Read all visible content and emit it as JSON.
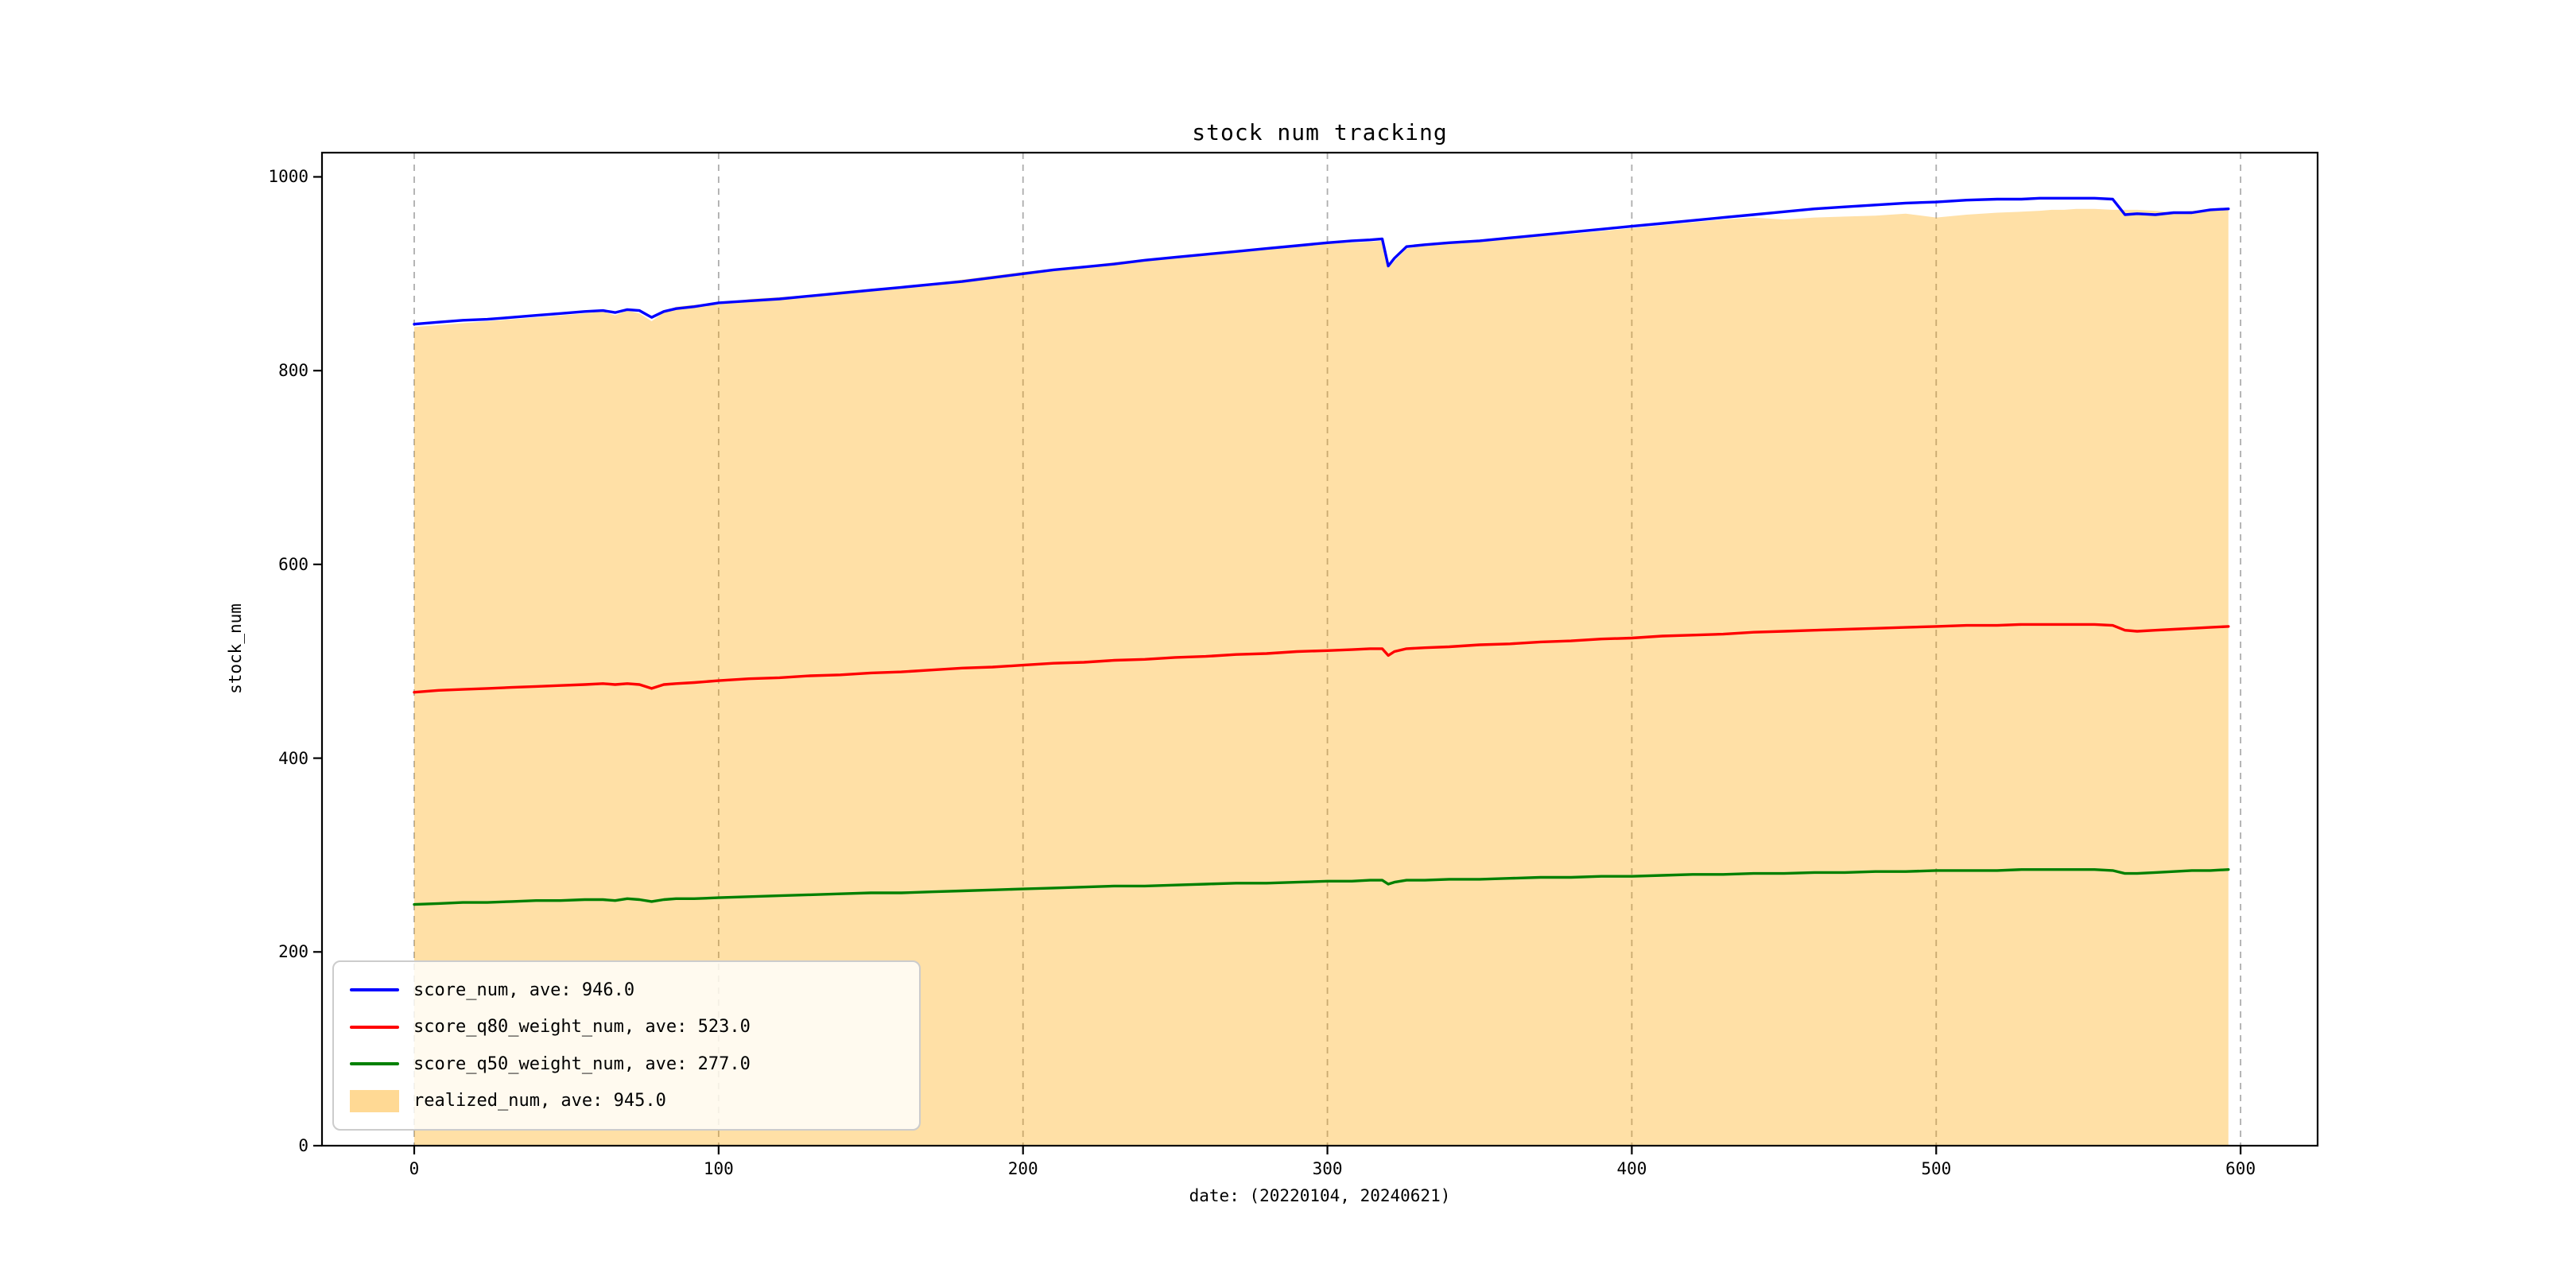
{
  "chart_data": {
    "type": "line",
    "title": "stock num tracking",
    "xlabel": "date: (20220104, 20240621)",
    "ylabel": "stock_num",
    "xlim": [
      -30.3,
      625.3
    ],
    "ylim": [
      0,
      1025
    ],
    "x_ticks": [
      0,
      100,
      200,
      300,
      400,
      500,
      600
    ],
    "y_ticks": [
      0,
      200,
      400,
      600,
      800,
      1000
    ],
    "grid": "vertical-dashed",
    "legend_position": "lower-left",
    "colors": {
      "score_num": "#0000ff",
      "score_q80_weight_num": "#ff0000",
      "score_q50_weight_num": "#008000",
      "realized_num": "#ffa500",
      "grid": "#adadad",
      "spine": "#000000"
    },
    "x": [
      0,
      8,
      16,
      24,
      32,
      40,
      48,
      56,
      62,
      66,
      70,
      74,
      78,
      82,
      86,
      92,
      100,
      110,
      120,
      130,
      140,
      150,
      160,
      170,
      180,
      190,
      200,
      210,
      220,
      230,
      240,
      250,
      260,
      270,
      280,
      290,
      300,
      308,
      314,
      318,
      320,
      322,
      326,
      332,
      340,
      350,
      360,
      370,
      380,
      390,
      400,
      410,
      420,
      430,
      440,
      450,
      460,
      470,
      480,
      490,
      500,
      510,
      520,
      528,
      534,
      538,
      542,
      546,
      552,
      558,
      562,
      566,
      572,
      578,
      584,
      590,
      596
    ],
    "series": [
      {
        "name": "score_num",
        "label": "score_num, ave: 946.0",
        "color": "#0000ff",
        "type": "line",
        "values": [
          848,
          850,
          852,
          853,
          855,
          857,
          859,
          861,
          862,
          860,
          863,
          862,
          855,
          861,
          864,
          866,
          870,
          872,
          874,
          877,
          880,
          883,
          886,
          889,
          892,
          896,
          900,
          904,
          907,
          910,
          914,
          917,
          920,
          923,
          926,
          929,
          932,
          934,
          935,
          936,
          908,
          916,
          928,
          930,
          932,
          934,
          937,
          940,
          943,
          946,
          949,
          952,
          955,
          958,
          961,
          964,
          967,
          969,
          971,
          973,
          974,
          976,
          977,
          977,
          978,
          978,
          978,
          978,
          978,
          977,
          961,
          962,
          961,
          963,
          963,
          966,
          967
        ]
      },
      {
        "name": "score_q80_weight_num",
        "label": "score_q80_weight_num, ave: 523.0",
        "color": "#ff0000",
        "type": "line",
        "values": [
          468,
          470,
          471,
          472,
          473,
          474,
          475,
          476,
          477,
          476,
          477,
          476,
          472,
          476,
          477,
          478,
          480,
          482,
          483,
          485,
          486,
          488,
          489,
          491,
          493,
          494,
          496,
          498,
          499,
          501,
          502,
          504,
          505,
          507,
          508,
          510,
          511,
          512,
          513,
          513,
          506,
          510,
          513,
          514,
          515,
          517,
          518,
          520,
          521,
          523,
          524,
          526,
          527,
          528,
          530,
          531,
          532,
          533,
          534,
          535,
          536,
          537,
          537,
          538,
          538,
          538,
          538,
          538,
          538,
          537,
          532,
          531,
          532,
          533,
          534,
          535,
          536
        ]
      },
      {
        "name": "score_q50_weight_num",
        "label": "score_q50_weight_num, ave: 277.0",
        "color": "#008000",
        "type": "line",
        "values": [
          249,
          250,
          251,
          251,
          252,
          253,
          253,
          254,
          254,
          253,
          255,
          254,
          252,
          254,
          255,
          255,
          256,
          257,
          258,
          259,
          260,
          261,
          261,
          262,
          263,
          264,
          265,
          266,
          267,
          268,
          268,
          269,
          270,
          271,
          271,
          272,
          273,
          273,
          274,
          274,
          270,
          272,
          274,
          274,
          275,
          275,
          276,
          277,
          277,
          278,
          278,
          279,
          280,
          280,
          281,
          281,
          282,
          282,
          283,
          283,
          284,
          284,
          284,
          285,
          285,
          285,
          285,
          285,
          285,
          284,
          281,
          281,
          282,
          283,
          284,
          284,
          285
        ]
      },
      {
        "name": "realized_num",
        "label": "realized_num, ave: 945.0",
        "color": "#ffa500",
        "type": "area",
        "values": [
          845,
          847,
          849,
          851,
          853,
          855,
          857,
          859,
          861,
          857,
          862,
          859,
          851,
          860,
          866,
          868,
          868,
          874,
          876,
          878,
          882,
          884,
          887,
          890,
          894,
          898,
          902,
          905,
          908,
          912,
          915,
          918,
          921,
          924,
          927,
          930,
          931,
          932,
          933,
          934,
          906,
          913,
          926,
          929,
          931,
          933,
          936,
          939,
          941,
          944,
          947,
          950,
          953,
          956,
          958,
          956,
          958,
          959,
          960,
          962,
          958,
          961,
          963,
          964,
          965,
          966,
          966,
          967,
          967,
          966,
          966,
          966,
          965,
          963,
          965,
          966,
          967
        ]
      }
    ],
    "legend": [
      {
        "label": "score_num, ave: 946.0",
        "color": "#0000ff",
        "swatch": "line"
      },
      {
        "label": "score_q80_weight_num, ave: 523.0",
        "color": "#ff0000",
        "swatch": "line"
      },
      {
        "label": "score_q50_weight_num, ave: 277.0",
        "color": "#008000",
        "swatch": "line"
      },
      {
        "label": "realized_num, ave: 945.0",
        "color": "#ffa500",
        "swatch": "patch"
      }
    ]
  }
}
